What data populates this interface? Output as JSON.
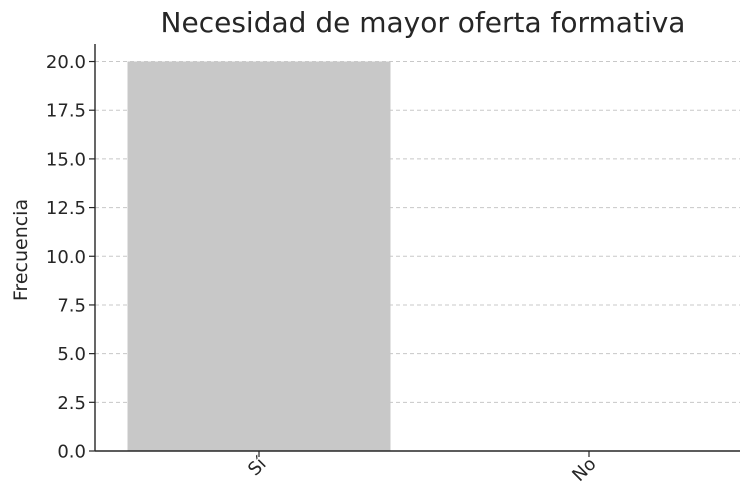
{
  "chart_data": {
    "type": "bar",
    "title": "Necesidad de mayor oferta formativa",
    "xlabel": "",
    "ylabel": "Frecuencia",
    "categories": [
      "Sí",
      "No"
    ],
    "values": [
      20,
      0
    ],
    "ylim": [
      0,
      20.9
    ],
    "yticks": [
      "0.0",
      "2.5",
      "5.0",
      "7.5",
      "10.0",
      "12.5",
      "15.0",
      "17.5",
      "20.0"
    ],
    "ytick_values": [
      0,
      2.5,
      5,
      7.5,
      10,
      12.5,
      15,
      17.5,
      20
    ],
    "grid": true,
    "bar_color": "#c8c8c8"
  }
}
